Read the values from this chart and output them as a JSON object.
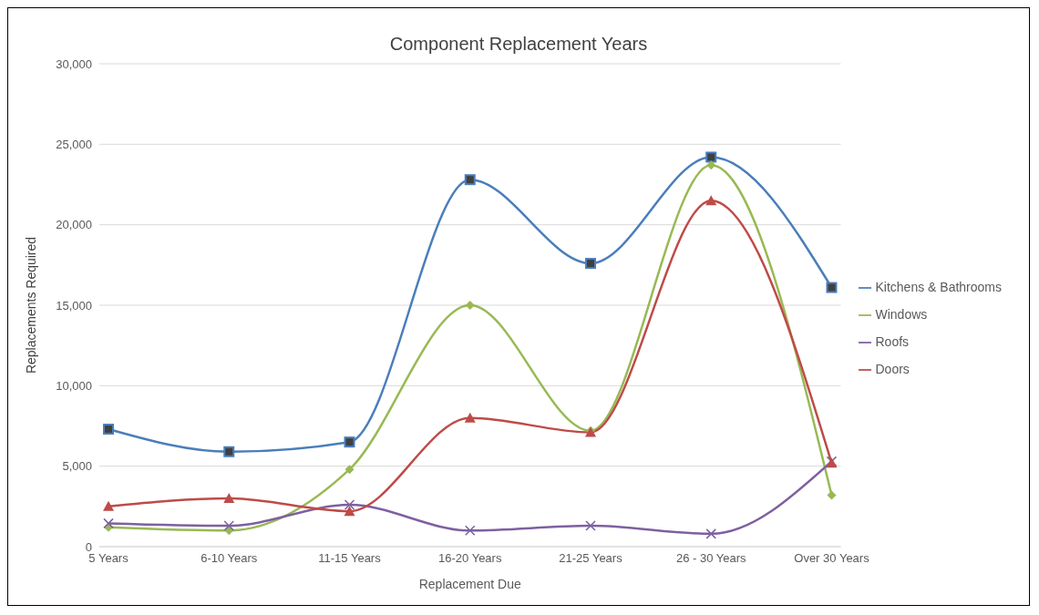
{
  "chart_data": {
    "type": "line",
    "title": "Component Replacement Years",
    "xlabel": "Replacement Due",
    "ylabel": "Replacements Required",
    "categories": [
      "5 Years",
      "6-10 Years",
      "11-15 Years",
      "16-20 Years",
      "21-25 Years",
      "26 - 30 Years",
      "Over 30 Years"
    ],
    "series": [
      {
        "name": "Kitchens & Bathrooms",
        "color": "#4a7ebb",
        "marker": "square",
        "values": [
          7300,
          5900,
          6500,
          22800,
          17600,
          24200,
          16100
        ]
      },
      {
        "name": "Windows",
        "color": "#98b954",
        "marker": "diamond",
        "values": [
          1200,
          1000,
          4800,
          15000,
          7200,
          23700,
          3200
        ]
      },
      {
        "name": "Roofs",
        "color": "#7d60a0",
        "marker": "cross",
        "values": [
          1450,
          1300,
          2600,
          1000,
          1300,
          800,
          5300
        ]
      },
      {
        "name": "Doors",
        "color": "#be4b48",
        "marker": "triangle",
        "values": [
          2500,
          3000,
          2200,
          8000,
          7100,
          21500,
          5200
        ]
      }
    ],
    "ylim": [
      0,
      30000
    ],
    "yticks": [
      0,
      {
        "value": 5000,
        "label": "5,000"
      },
      {
        "value": 10000,
        "label": "10,000"
      },
      {
        "value": 15000,
        "label": "15,000"
      },
      {
        "value": 20000,
        "label": "20,000"
      },
      {
        "value": 25000,
        "label": "25,000"
      },
      {
        "value": 30000,
        "label": "30,000"
      }
    ],
    "grid": "y",
    "legend": "right",
    "line_style": "solid"
  }
}
